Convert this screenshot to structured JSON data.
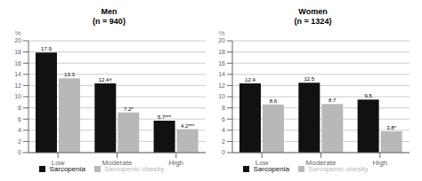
{
  "chart_data": [
    {
      "type": "bar",
      "title": "Men",
      "subtitle": "(n = 940)",
      "y_label": "%",
      "categories": [
        "Low",
        "Moderate",
        "High"
      ],
      "series": [
        {
          "name": "Sarcopenia",
          "color": "#111111",
          "values": [
            17.9,
            12.4,
            5.7
          ],
          "value_labels": [
            "17.9",
            "12.4†",
            "5.7***"
          ]
        },
        {
          "name": "Sarcopenic obesity",
          "color": "#b8b8b8",
          "values": [
            13.3,
            7.2,
            4.2
          ],
          "value_labels": [
            "13.3",
            "7.2*",
            "4.2***"
          ]
        }
      ],
      "ylim": [
        0,
        20
      ],
      "yticks": [
        0,
        2,
        4,
        6,
        8,
        10,
        12,
        14,
        16,
        18,
        20
      ],
      "grid": true,
      "legend": "bottom",
      "data_labels": true
    },
    {
      "type": "bar",
      "title": "Women",
      "subtitle": "(n = 1324)",
      "y_label": "%",
      "categories": [
        "Low",
        "Moderate",
        "High"
      ],
      "series": [
        {
          "name": "Sarcopenia",
          "color": "#111111",
          "values": [
            12.4,
            12.5,
            9.5
          ],
          "value_labels": [
            "12.4",
            "12.5",
            "9.5"
          ]
        },
        {
          "name": "Sarcopenic obesity",
          "color": "#b8b8b8",
          "values": [
            8.6,
            8.7,
            3.8
          ],
          "value_labels": [
            "8.6",
            "8.7",
            "3.8*"
          ]
        }
      ],
      "ylim": [
        0,
        20
      ],
      "yticks": [
        0,
        2,
        4,
        6,
        8,
        10,
        12,
        14,
        16,
        18,
        20
      ],
      "grid": true,
      "legend": "bottom",
      "data_labels": true
    }
  ]
}
